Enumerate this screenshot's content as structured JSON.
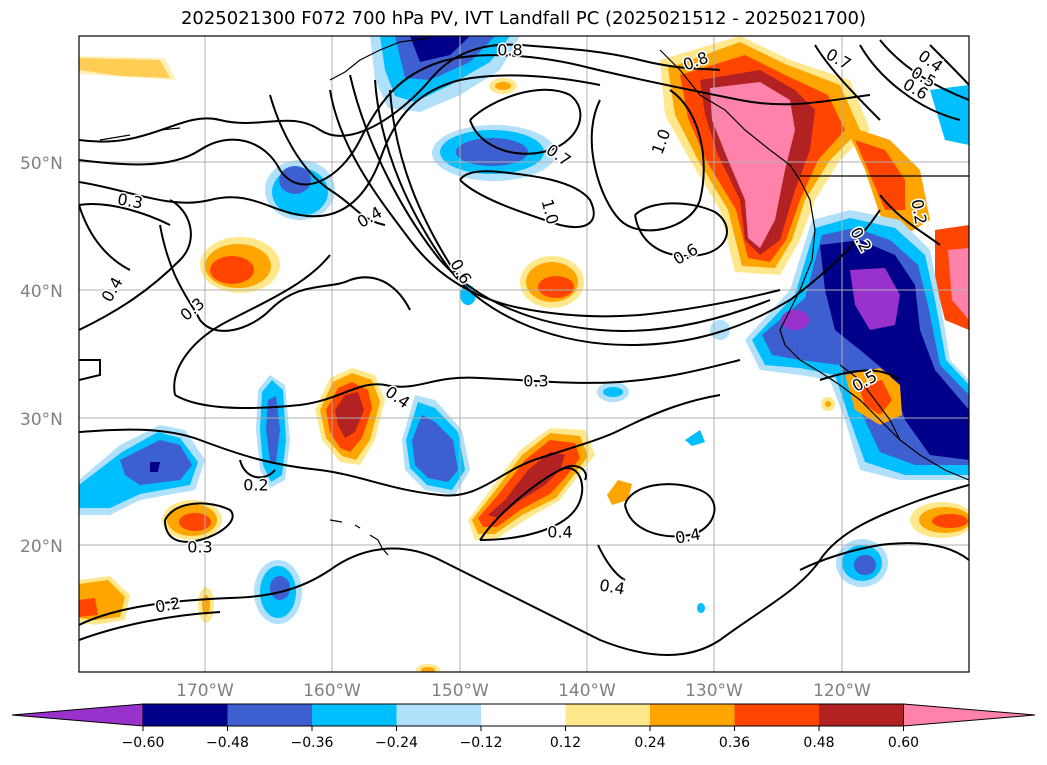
{
  "title": "2025021300 F072 700 hPa PV, IVT Landfall PC (2025021512 - 2025021700)",
  "latitude_labels": [
    "50°N",
    "40°N",
    "30°N",
    "20°N"
  ],
  "longitude_labels": [
    "170°W",
    "160°W",
    "150°W",
    "140°W",
    "130°W",
    "120°W"
  ],
  "contour_labels": [
    "0.8",
    "0.8",
    "0.7",
    "0.4",
    "0.5",
    "0.6",
    "1.0",
    "0.7",
    "1.0",
    "0.3",
    "0.4",
    "0.6",
    "0.6",
    "0.4",
    "0.3",
    "0.3",
    "0.2",
    "0.5",
    "0.4",
    "0.2",
    "0.3",
    "0.4",
    "0.4",
    "0.4",
    "0.2",
    "0.2"
  ],
  "colorbar": {
    "ticks": [
      "−0.60",
      "−0.48",
      "−0.36",
      "−0.24",
      "−0.12",
      "0.12",
      "0.24",
      "0.36",
      "0.48",
      "0.60"
    ],
    "colors": [
      "#9932cc",
      "#00008b",
      "#3d5fcf",
      "#00bfff",
      "#b0e0fa",
      "#ffffff",
      "#ffe88c",
      "#ffa500",
      "#ff4500",
      "#b22222",
      "#ff82ab"
    ]
  },
  "palette": {
    "purple": "#9932cc",
    "navy": "#00008b",
    "royal": "#3d5fcf",
    "sky": "#00bfff",
    "lightblue": "#b0e0fa",
    "lightyellow": "#ffe88c",
    "orange": "#ffa500",
    "red": "#ff4500",
    "firebrick": "#b22222",
    "pink": "#ff82ab"
  }
}
